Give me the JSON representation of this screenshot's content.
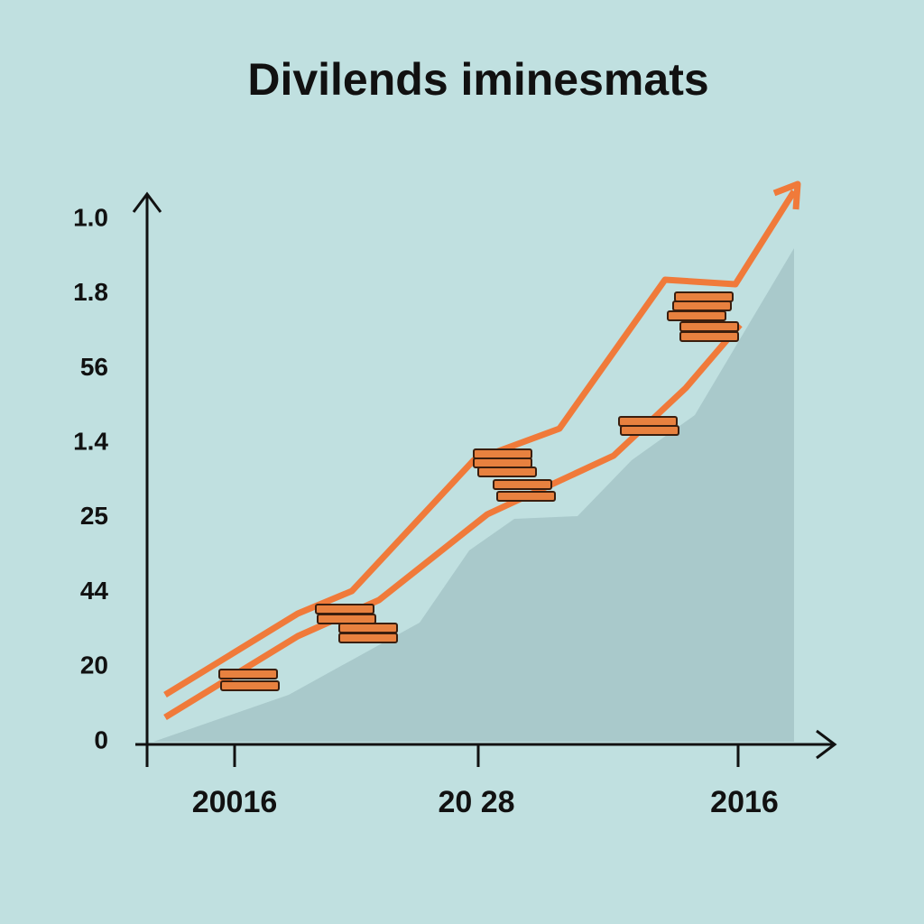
{
  "title": "Divilends iminesmats",
  "y_labels": [
    "1.0",
    "1.8",
    "56",
    "1.4",
    "25",
    "44",
    "20",
    "0"
  ],
  "x_labels": [
    "20016",
    "20 28",
    "2016"
  ]
}
